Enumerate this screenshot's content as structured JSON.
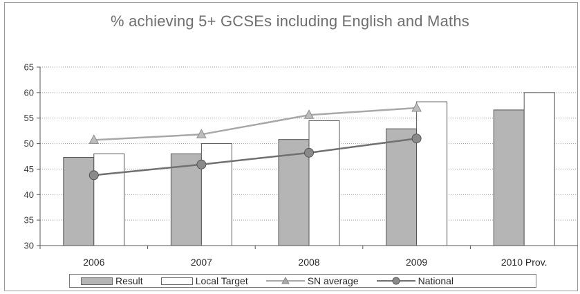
{
  "chart_data": {
    "type": "bar",
    "title": "% achieving 5+ GCSEs including English and Maths",
    "categories": [
      "2006",
      "2007",
      "2008",
      "2009",
      "2010 Prov."
    ],
    "ylim": [
      30,
      65
    ],
    "yticks": [
      30,
      35,
      40,
      45,
      50,
      55,
      60,
      65
    ],
    "grid": true,
    "legend_position": "bottom",
    "series": [
      {
        "name": "Result",
        "kind": "bar",
        "color": "#b5b5b5",
        "values": [
          47.3,
          48.0,
          50.8,
          52.9,
          56.6
        ]
      },
      {
        "name": "Local Target",
        "kind": "bar",
        "color": "#ffffff",
        "values": [
          48.0,
          50.0,
          54.5,
          58.2,
          60.0
        ]
      },
      {
        "name": "SN average",
        "kind": "line",
        "marker": "triangle",
        "color": "#a8a8a8",
        "values": [
          50.7,
          51.8,
          55.6,
          57.0,
          null
        ]
      },
      {
        "name": "National",
        "kind": "line",
        "marker": "circle",
        "color": "#707070",
        "values": [
          43.8,
          45.9,
          48.2,
          51.0,
          null
        ]
      }
    ]
  }
}
